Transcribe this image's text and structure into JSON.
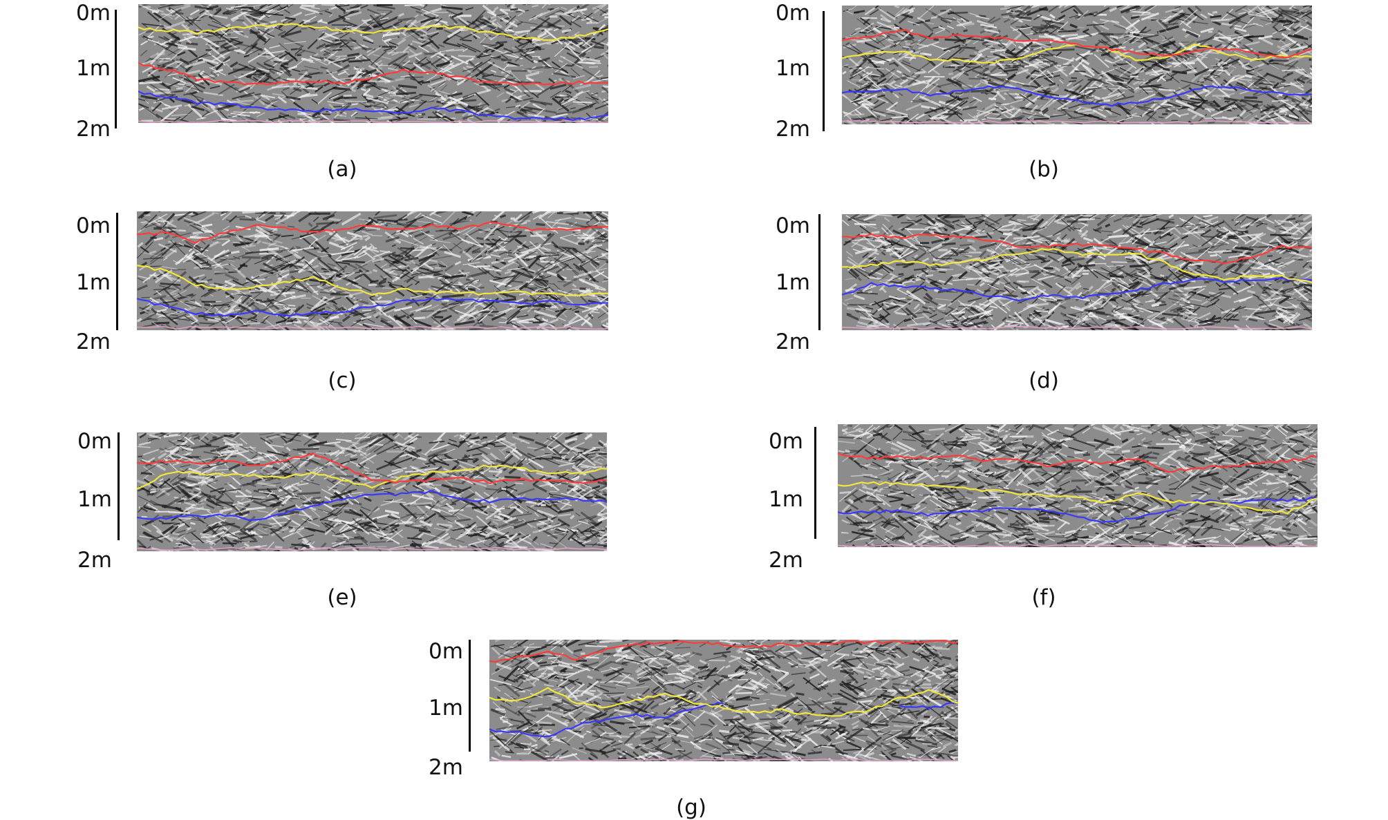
{
  "colors": {
    "background": "#ffffff",
    "image_base": "#8c8c8c",
    "layer_1": "#ff3b3b",
    "layer_2": "#f0e63c",
    "layer_3": "#3a3aff",
    "layer_4": "#e6a0c8"
  },
  "panels": [
    {
      "id": "a",
      "caption": "(a)",
      "depth_labels": [
        "0m",
        "1m",
        "2m"
      ]
    },
    {
      "id": "b",
      "caption": "(b)",
      "depth_labels": [
        "0m",
        "1m",
        "2m"
      ]
    },
    {
      "id": "c",
      "caption": "(c)",
      "depth_labels": [
        "0m",
        "1m",
        "2m"
      ]
    },
    {
      "id": "d",
      "caption": "(d)",
      "depth_labels": [
        "0m",
        "1m",
        "2m"
      ]
    },
    {
      "id": "e",
      "caption": "(e)",
      "depth_labels": [
        "0m",
        "1m",
        "2m"
      ]
    },
    {
      "id": "f",
      "caption": "(f)",
      "depth_labels": [
        "0m",
        "1m",
        "2m"
      ]
    },
    {
      "id": "g",
      "caption": "(g)",
      "depth_labels": [
        "0m",
        "1m",
        "2m"
      ]
    }
  ]
}
